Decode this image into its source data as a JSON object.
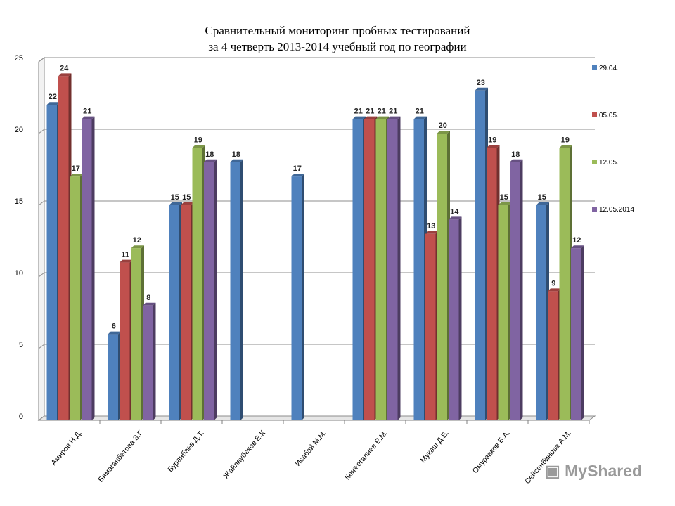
{
  "chart_data": {
    "type": "bar",
    "title": "Сравнительный мониторинг пробных тестирований",
    "subtitle": "за 4 четверть 2013-2014 учебный год  по географии",
    "categories": [
      "Амиров Н.Д.",
      "Бимаганбетова З.Г",
      "Буранбаев Д.Т.",
      "Жайлаубеков Е.К",
      "Исабай М.М.",
      "Кенжегалиев Е.М.",
      "Мукаш Д.Е.",
      "Омурзаков Б.А.",
      "Сейсенбинова А.М."
    ],
    "series": [
      {
        "name": "29.04.",
        "color": "#4f81bd",
        "values": [
          22,
          6,
          15,
          18,
          17,
          21,
          21,
          23,
          15
        ]
      },
      {
        "name": "05.05.",
        "color": "#c0504d",
        "values": [
          24,
          11,
          15,
          null,
          null,
          21,
          13,
          19,
          9
        ]
      },
      {
        "name": "12.05.",
        "color": "#9bbb59",
        "values": [
          17,
          12,
          19,
          null,
          null,
          21,
          20,
          15,
          19
        ]
      },
      {
        "name": "12.05.2014",
        "color": "#8064a2",
        "values": [
          21,
          8,
          18,
          null,
          null,
          21,
          14,
          18,
          12
        ]
      }
    ],
    "yticks": [
      "0",
      "5",
      "10",
      "15",
      "20",
      "25"
    ],
    "ylim": [
      0,
      25
    ],
    "grid": true,
    "legend": "right"
  },
  "watermark": {
    "text": "MyShared",
    "icon": "presentation-board-icon"
  }
}
